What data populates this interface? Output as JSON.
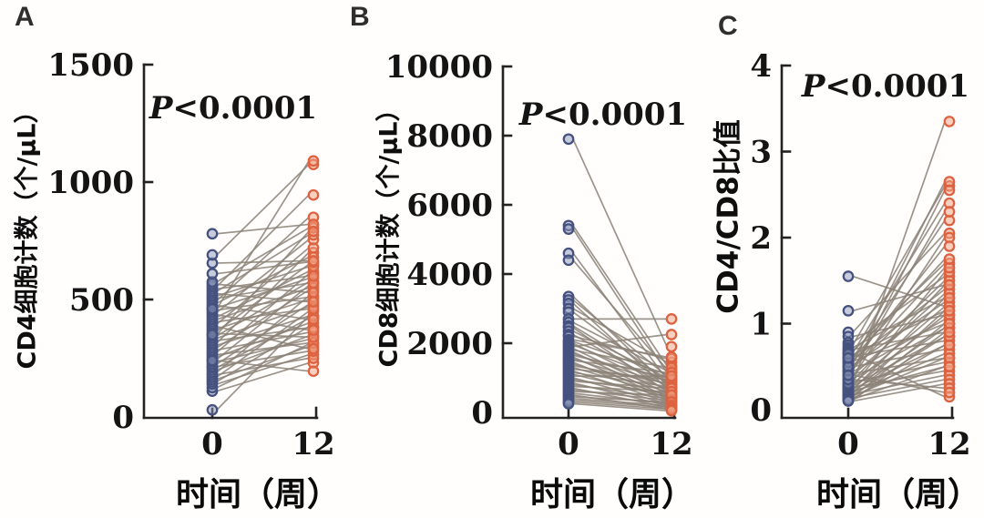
{
  "colors": {
    "week0_stroke": "#45517f",
    "week0_fill": "#8e97bc",
    "week12_stroke": "#dd6240",
    "week12_fill": "#f0a183",
    "pair_line": "#8b8177",
    "axis": "#222222",
    "text": "#141414"
  },
  "chart_data": [
    {
      "type": "line",
      "subtype": "paired-slope",
      "letter": "A",
      "ylabel": "CD4细胞计数（个/μL）",
      "xlabel": "时间（周）",
      "annotation": "P<0.0001",
      "x_categories": [
        "0",
        "12"
      ],
      "ylim": [
        0,
        1500
      ],
      "yticks": [
        0,
        500,
        1000,
        1500
      ],
      "pairs": [
        [
          30,
          430
        ],
        [
          110,
          230
        ],
        [
          125,
          310
        ],
        [
          140,
          265
        ],
        [
          150,
          385
        ],
        [
          160,
          300
        ],
        [
          170,
          450
        ],
        [
          180,
          250
        ],
        [
          190,
          515
        ],
        [
          200,
          345
        ],
        [
          210,
          420
        ],
        [
          215,
          280
        ],
        [
          225,
          480
        ],
        [
          235,
          330
        ],
        [
          245,
          560
        ],
        [
          255,
          400
        ],
        [
          265,
          315
        ],
        [
          275,
          610
        ],
        [
          285,
          360
        ],
        [
          295,
          540
        ],
        [
          305,
          430
        ],
        [
          315,
          700
        ],
        [
          325,
          380
        ],
        [
          335,
          470
        ],
        [
          345,
          575
        ],
        [
          355,
          340
        ],
        [
          365,
          650
        ],
        [
          375,
          500
        ],
        [
          385,
          290
        ],
        [
          395,
          720
        ],
        [
          405,
          460
        ],
        [
          415,
          550
        ],
        [
          425,
          620
        ],
        [
          435,
          370
        ],
        [
          445,
          755
        ],
        [
          455,
          510
        ],
        [
          465,
          590
        ],
        [
          475,
          415
        ],
        [
          485,
          680
        ],
        [
          495,
          850
        ],
        [
          505,
          570
        ],
        [
          515,
          640
        ],
        [
          525,
          490
        ],
        [
          535,
          775
        ],
        [
          545,
          600
        ],
        [
          555,
          945
        ],
        [
          565,
          530
        ],
        [
          575,
          805
        ],
        [
          610,
          660
        ],
        [
          655,
          665
        ],
        [
          690,
          1075
        ],
        [
          780,
          820
        ],
        [
          460,
          1090
        ],
        [
          350,
          790
        ],
        [
          240,
          195
        ]
      ]
    },
    {
      "type": "line",
      "subtype": "paired-slope",
      "letter": "B",
      "ylabel": "CD8细胞计数（个/μL）",
      "xlabel": "时间（周）",
      "annotation": "P<0.0001",
      "x_categories": [
        "0",
        "12"
      ],
      "ylim": [
        0,
        10000
      ],
      "yticks": [
        0,
        2000,
        4000,
        6000,
        8000,
        10000
      ],
      "pairs": [
        [
          7900,
          1900
        ],
        [
          5400,
          1350
        ],
        [
          5300,
          1150
        ],
        [
          4600,
          950
        ],
        [
          4400,
          1250
        ],
        [
          3350,
          800
        ],
        [
          3250,
          1050
        ],
        [
          3150,
          700
        ],
        [
          3000,
          1450
        ],
        [
          2900,
          900
        ],
        [
          2700,
          2700
        ],
        [
          2600,
          1200
        ],
        [
          2500,
          850
        ],
        [
          2450,
          600
        ],
        [
          2350,
          1000
        ],
        [
          2250,
          750
        ],
        [
          2200,
          1550
        ],
        [
          2100,
          1600
        ],
        [
          2050,
          1100
        ],
        [
          2000,
          650
        ],
        [
          1950,
          900
        ],
        [
          1900,
          2250
        ],
        [
          1850,
          550
        ],
        [
          1800,
          1300
        ],
        [
          1750,
          450
        ],
        [
          1700,
          800
        ],
        [
          1650,
          1000
        ],
        [
          1600,
          400
        ],
        [
          1550,
          700
        ],
        [
          1500,
          1150
        ],
        [
          1450,
          350
        ],
        [
          1400,
          600
        ],
        [
          1350,
          850
        ],
        [
          1300,
          500
        ],
        [
          1250,
          950
        ],
        [
          1200,
          300
        ],
        [
          1150,
          750
        ],
        [
          1100,
          450
        ],
        [
          1050,
          1050
        ],
        [
          1000,
          250
        ],
        [
          950,
          550
        ],
        [
          900,
          700
        ],
        [
          850,
          200
        ],
        [
          800,
          400
        ],
        [
          750,
          600
        ],
        [
          700,
          150
        ],
        [
          650,
          350
        ],
        [
          600,
          500
        ],
        [
          550,
          250
        ],
        [
          500,
          100
        ],
        [
          450,
          300
        ],
        [
          400,
          200
        ],
        [
          350,
          150
        ],
        [
          300,
          100
        ],
        [
          250,
          50
        ]
      ]
    },
    {
      "type": "line",
      "subtype": "paired-slope",
      "letter": "C",
      "ylabel": "CD4/CD8比值",
      "xlabel": "时间（周）",
      "annotation": "P<0.0001",
      "x_categories": [
        "0",
        "12"
      ],
      "ylim": [
        0,
        4
      ],
      "yticks": [
        0,
        1,
        2,
        3,
        4
      ],
      "pairs": [
        [
          1.55,
          1.2
        ],
        [
          1.15,
          1.45
        ],
        [
          0.9,
          2.05
        ],
        [
          0.85,
          1.1
        ],
        [
          0.78,
          1.55
        ],
        [
          0.75,
          2.6
        ],
        [
          0.72,
          1.3
        ],
        [
          0.7,
          0.9
        ],
        [
          0.68,
          1.7
        ],
        [
          0.66,
          2.4
        ],
        [
          0.64,
          1.15
        ],
        [
          0.62,
          0.8
        ],
        [
          0.6,
          2.2
        ],
        [
          0.58,
          1.4
        ],
        [
          0.56,
          1.0
        ],
        [
          0.54,
          2.65
        ],
        [
          0.52,
          1.25
        ],
        [
          0.5,
          0.7
        ],
        [
          0.48,
          1.5
        ],
        [
          0.46,
          2.3
        ],
        [
          0.44,
          1.05
        ],
        [
          0.42,
          0.6
        ],
        [
          0.4,
          1.35
        ],
        [
          0.38,
          2.0
        ],
        [
          0.36,
          0.95
        ],
        [
          0.34,
          1.45
        ],
        [
          0.32,
          0.55
        ],
        [
          0.3,
          1.2
        ],
        [
          0.28,
          0.85
        ],
        [
          0.27,
          1.6
        ],
        [
          0.26,
          0.45
        ],
        [
          0.25,
          1.1
        ],
        [
          0.24,
          0.75
        ],
        [
          0.23,
          1.3
        ],
        [
          0.22,
          0.5
        ],
        [
          0.21,
          0.95
        ],
        [
          0.2,
          0.65
        ],
        [
          0.19,
          1.15
        ],
        [
          0.18,
          0.4
        ],
        [
          0.17,
          0.85
        ],
        [
          0.16,
          0.6
        ],
        [
          0.15,
          1.0
        ],
        [
          0.14,
          0.35
        ],
        [
          0.13,
          0.75
        ],
        [
          0.12,
          0.5
        ],
        [
          0.11,
          0.9
        ],
        [
          0.1,
          0.3
        ],
        [
          0.3,
          3.35
        ],
        [
          0.45,
          2.55
        ],
        [
          0.55,
          1.9
        ],
        [
          0.35,
          0.25
        ],
        [
          0.65,
          0.15
        ],
        [
          0.5,
          1.65
        ],
        [
          0.4,
          0.2
        ],
        [
          0.6,
          1.75
        ]
      ]
    }
  ]
}
